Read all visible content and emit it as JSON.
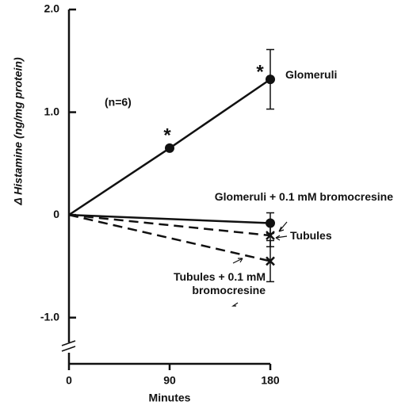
{
  "chart_data": {
    "type": "line",
    "y_label": "Δ Histamine (ng/mg protein)",
    "x_label": "Minutes",
    "annotations": [
      "(n=6)",
      "*",
      "*"
    ],
    "xlim": [
      0,
      180
    ],
    "xticks": [
      0,
      90,
      180
    ],
    "ylim": [
      -1.45,
      2.0
    ],
    "yticks": [
      {
        "value": 2,
        "label": "2.0"
      },
      {
        "value": 1,
        "label": "1.0"
      },
      0,
      {
        "value": -1,
        "label": "-1.0"
      }
    ],
    "series": [
      {
        "name": "Glomeruli",
        "color": "#111111",
        "dash": false,
        "marker": "circle",
        "x": [
          0,
          90,
          180
        ],
        "values": [
          0,
          0.65,
          1.32
        ],
        "errors": [
          null,
          null,
          0.29
        ]
      },
      {
        "name": "Glomeruli + 0.1 mM bromocresine",
        "color": "#111111",
        "dash": false,
        "marker": "circle",
        "x": [
          0,
          180
        ],
        "values": [
          0,
          -0.08
        ],
        "errors": [
          null,
          0.1
        ]
      },
      {
        "name": "Tubules",
        "color": "#111111",
        "dash": true,
        "marker": "x",
        "x": [
          0,
          180
        ],
        "values": [
          0,
          -0.2
        ],
        "errors": [
          null,
          0.11
        ]
      },
      {
        "name": "Tubules + 0.1 mM bromocresine",
        "color": "#111111",
        "dash": true,
        "marker": "x",
        "x": [
          0,
          180
        ],
        "values": [
          0,
          -0.45
        ],
        "errors": [
          null,
          0.2
        ]
      }
    ]
  }
}
